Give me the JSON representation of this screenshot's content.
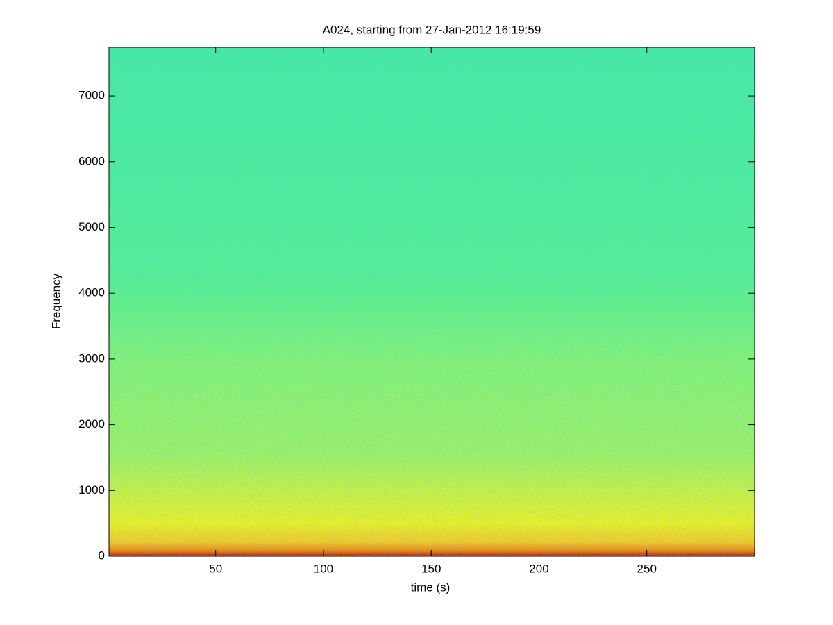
{
  "chart_data": {
    "type": "spectrogram",
    "title": "A024, starting from 27-Jan-2012 16:19:59",
    "xlabel": "time (s)",
    "ylabel": "Frequency",
    "xlim": [
      0.5,
      300
    ],
    "xticks": [
      50,
      100,
      150,
      200,
      250
    ],
    "ylim": [
      0,
      7740
    ],
    "yticks": [
      0,
      1000,
      2000,
      3000,
      4000,
      5000,
      6000,
      7000
    ]
  }
}
